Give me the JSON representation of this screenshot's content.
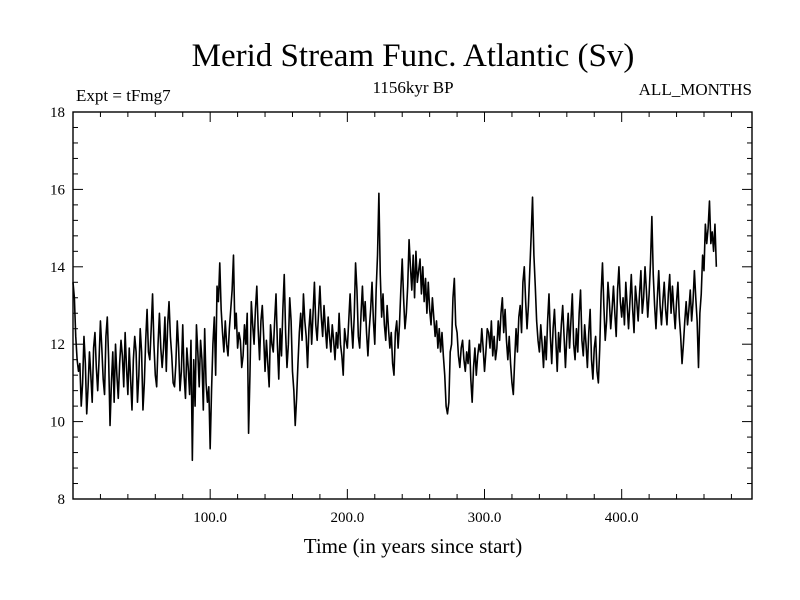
{
  "chart_data": {
    "type": "line",
    "title": "Merid Stream Func. Atlantic (Sv)",
    "subtitle_left": "Expt = tFmg7",
    "subtitle_center": "1156kyr BP",
    "subtitle_right": "ALL_MONTHS",
    "xlabel": "Time (in years since start)",
    "ylabel": "",
    "xlim": [
      0,
      495
    ],
    "ylim": [
      8,
      18
    ],
    "x_ticks": [
      100,
      200,
      300,
      400
    ],
    "x_tick_labels": [
      "100.0",
      "200.0",
      "300.0",
      "400.0"
    ],
    "y_ticks": [
      8,
      10,
      12,
      14,
      16,
      18
    ],
    "y_tick_labels": [
      "8",
      "10",
      "12",
      "14",
      "16",
      "18"
    ],
    "series": [
      {
        "name": "Merid Stream Func. Atlantic",
        "x_start": 0,
        "x_step": 1,
        "values": [
          13.6,
          13.2,
          12.2,
          11.6,
          11.3,
          11.5,
          10.4,
          11.0,
          12.2,
          11.5,
          10.2,
          10.9,
          11.8,
          11.2,
          10.5,
          11.9,
          12.3,
          11.4,
          10.8,
          11.6,
          12.6,
          11.9,
          11.1,
          10.7,
          12.2,
          12.7,
          11.6,
          9.9,
          11.0,
          11.8,
          10.5,
          12.0,
          11.2,
          10.6,
          11.5,
          12.1,
          11.7,
          10.9,
          12.3,
          11.4,
          10.7,
          11.9,
          11.1,
          10.3,
          11.6,
          12.2,
          11.8,
          10.5,
          11.2,
          12.4,
          11.8,
          10.3,
          11.0,
          12.1,
          12.9,
          11.8,
          11.6,
          12.4,
          13.3,
          12.0,
          11.2,
          10.9,
          12.0,
          12.8,
          11.9,
          11.4,
          11.9,
          12.7,
          11.3,
          12.5,
          13.1,
          12.2,
          11.7,
          11.0,
          10.9,
          11.5,
          12.6,
          11.9,
          10.8,
          11.3,
          12.5,
          11.2,
          10.6,
          11.9,
          11.4,
          10.7,
          12.1,
          9.0,
          11.6,
          10.4,
          12.5,
          11.8,
          10.9,
          12.1,
          11.6,
          10.3,
          12.4,
          11.0,
          10.5,
          10.9,
          9.3,
          10.8,
          12.0,
          12.7,
          11.2,
          13.5,
          13.1,
          14.1,
          12.9,
          12.3,
          11.8,
          12.6,
          12.0,
          11.7,
          12.4,
          12.9,
          13.4,
          14.3,
          12.4,
          12.8,
          11.9,
          12.3,
          12.1,
          11.4,
          11.7,
          12.5,
          12.0,
          12.8,
          9.7,
          11.2,
          13.1,
          12.5,
          12.0,
          12.9,
          13.5,
          12.4,
          11.6,
          12.6,
          13.0,
          12.2,
          11.3,
          12.1,
          11.5,
          10.9,
          12.5,
          12.0,
          11.8,
          12.6,
          13.3,
          12.0,
          11.1,
          12.4,
          11.7,
          12.9,
          13.8,
          12.3,
          11.4,
          12.0,
          13.2,
          12.6,
          11.3,
          10.8,
          9.9,
          10.6,
          11.5,
          12.3,
          12.8,
          12.1,
          13.3,
          12.6,
          12.2,
          11.4,
          12.4,
          12.9,
          12.0,
          12.8,
          13.6,
          12.5,
          12.1,
          12.8,
          13.5,
          12.7,
          12.2,
          13.0,
          12.4,
          11.9,
          12.7,
          12.2,
          11.8,
          12.5,
          12.1,
          11.6,
          12.3,
          11.9,
          12.8,
          12.0,
          11.7,
          11.2,
          12.4,
          12.1,
          11.9,
          12.6,
          13.3,
          12.5,
          11.9,
          12.7,
          14.1,
          13.4,
          12.2,
          11.9,
          12.8,
          13.5,
          12.6,
          13.1,
          12.3,
          11.7,
          12.4,
          12.9,
          13.6,
          12.6,
          12.0,
          13.4,
          14.3,
          15.9,
          13.8,
          12.7,
          13.3,
          12.5,
          12.1,
          13.0,
          12.4,
          11.9,
          12.3,
          11.5,
          11.2,
          12.3,
          12.6,
          11.9,
          12.5,
          13.4,
          14.2,
          13.2,
          12.4,
          12.8,
          13.5,
          14.7,
          14.0,
          13.4,
          14.3,
          13.2,
          14.4,
          13.6,
          13.9,
          14.2,
          13.3,
          14.0,
          13.1,
          13.7,
          12.8,
          13.6,
          12.9,
          12.5,
          13.2,
          12.7,
          12.2,
          12.6,
          11.9,
          12.4,
          11.8,
          12.3,
          11.7,
          11.2,
          10.4,
          10.2,
          10.5,
          11.8,
          12.0,
          13.2,
          13.7,
          12.5,
          12.3,
          11.7,
          11.4,
          11.9,
          12.1,
          11.6,
          11.3,
          11.8,
          11.5,
          12.1,
          11.1,
          10.5,
          11.4,
          11.9,
          11.2,
          11.7,
          12.0,
          11.8,
          12.4,
          11.9,
          11.3,
          11.8,
          12.4,
          12.3,
          11.9,
          12.6,
          11.7,
          12.2,
          11.6,
          11.9,
          12.6,
          12.1,
          12.8,
          13.2,
          12.3,
          12.9,
          12.1,
          11.6,
          12.2,
          11.5,
          11.0,
          10.7,
          11.6,
          12.4,
          11.8,
          12.7,
          13.0,
          12.3,
          13.6,
          14.0,
          13.1,
          12.4,
          13.0,
          13.9,
          14.8,
          15.8,
          14.3,
          13.5,
          12.6,
          12.1,
          11.8,
          12.5,
          12.0,
          11.4,
          12.2,
          11.6,
          12.6,
          13.3,
          12.2,
          11.5,
          12.4,
          12.9,
          12.1,
          11.3,
          12.3,
          11.8,
          12.5,
          13.0,
          12.2,
          11.4,
          12.2,
          12.8,
          11.9,
          12.6,
          13.3,
          12.0,
          11.6,
          12.4,
          11.8,
          12.8,
          13.4,
          12.1,
          11.7,
          12.5,
          12.0,
          11.4,
          12.3,
          12.9,
          11.6,
          11.1,
          11.9,
          12.2,
          11.3,
          11.0,
          11.9,
          13.3,
          14.1,
          13.0,
          12.1,
          12.6,
          13.6,
          13.1,
          12.4,
          12.9,
          13.5,
          12.8,
          12.2,
          13.4,
          14.0,
          13.1,
          12.7,
          13.2,
          12.5,
          13.6,
          13.0,
          12.4,
          13.1,
          13.8,
          12.9,
          12.3,
          13.5,
          13.1,
          12.6,
          13.3,
          13.9,
          12.8,
          13.2,
          14.0,
          13.4,
          12.7,
          13.3,
          14.1,
          15.3,
          13.8,
          13.0,
          12.4,
          13.2,
          13.9,
          13.0,
          12.5,
          13.1,
          13.6,
          12.9,
          12.5,
          13.3,
          13.8,
          12.8,
          13.5,
          12.9,
          12.4,
          13.1,
          13.6,
          12.7,
          12.2,
          11.5,
          12.0,
          12.6,
          13.1,
          12.5,
          12.9,
          13.4,
          12.6,
          13.1,
          13.9,
          13.2,
          12.6,
          11.4,
          12.8,
          13.3,
          14.3,
          13.9,
          15.1,
          14.6,
          15.0,
          15.7,
          14.6,
          14.9,
          14.4,
          15.1,
          14.0
        ]
      }
    ]
  }
}
